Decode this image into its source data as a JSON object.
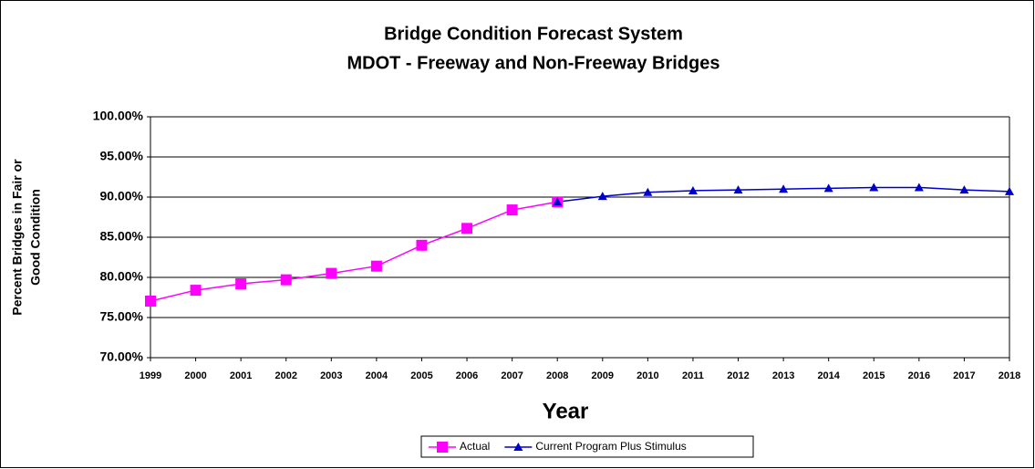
{
  "chart_data": {
    "type": "line",
    "title": "Bridge Condition Forecast System",
    "subtitle": "MDOT - Freeway and Non-Freeway Bridges",
    "ylabel": [
      "Percent Bridges in Fair or",
      "Good Condition"
    ],
    "xlabel": "Year",
    "categories": [
      "1999",
      "2000",
      "2001",
      "2002",
      "2003",
      "2004",
      "2005",
      "2006",
      "2007",
      "2008",
      "2009",
      "2010",
      "2011",
      "2012",
      "2013",
      "2014",
      "2015",
      "2016",
      "2017",
      "2018"
    ],
    "series": [
      {
        "name": "Actual",
        "color": "#ff00ff",
        "marker": "square",
        "values": [
          77.05,
          78.4,
          79.2,
          79.7,
          80.5,
          81.4,
          84.0,
          86.1,
          88.4,
          89.4,
          null,
          null,
          null,
          null,
          null,
          null,
          null,
          null,
          null,
          null
        ]
      },
      {
        "name": "Current Program Plus Stimulus",
        "color": "#0000cc",
        "marker": "triangle",
        "values": [
          null,
          null,
          null,
          null,
          null,
          null,
          null,
          null,
          null,
          89.4,
          90.1,
          90.6,
          90.8,
          90.9,
          91.0,
          91.1,
          91.2,
          91.2,
          90.9,
          90.7
        ]
      }
    ],
    "ylim": [
      70,
      100
    ],
    "yticks": [
      {
        "value": 70,
        "label": "70.00%"
      },
      {
        "value": 75,
        "label": "75.00%"
      },
      {
        "value": 80,
        "label": "80.00%"
      },
      {
        "value": 85,
        "label": "85.00%"
      },
      {
        "value": 90,
        "label": "90.00%"
      },
      {
        "value": 95,
        "label": "95.00%"
      },
      {
        "value": 100,
        "label": "100.00%"
      }
    ],
    "grid": true,
    "legend": "bottom"
  }
}
